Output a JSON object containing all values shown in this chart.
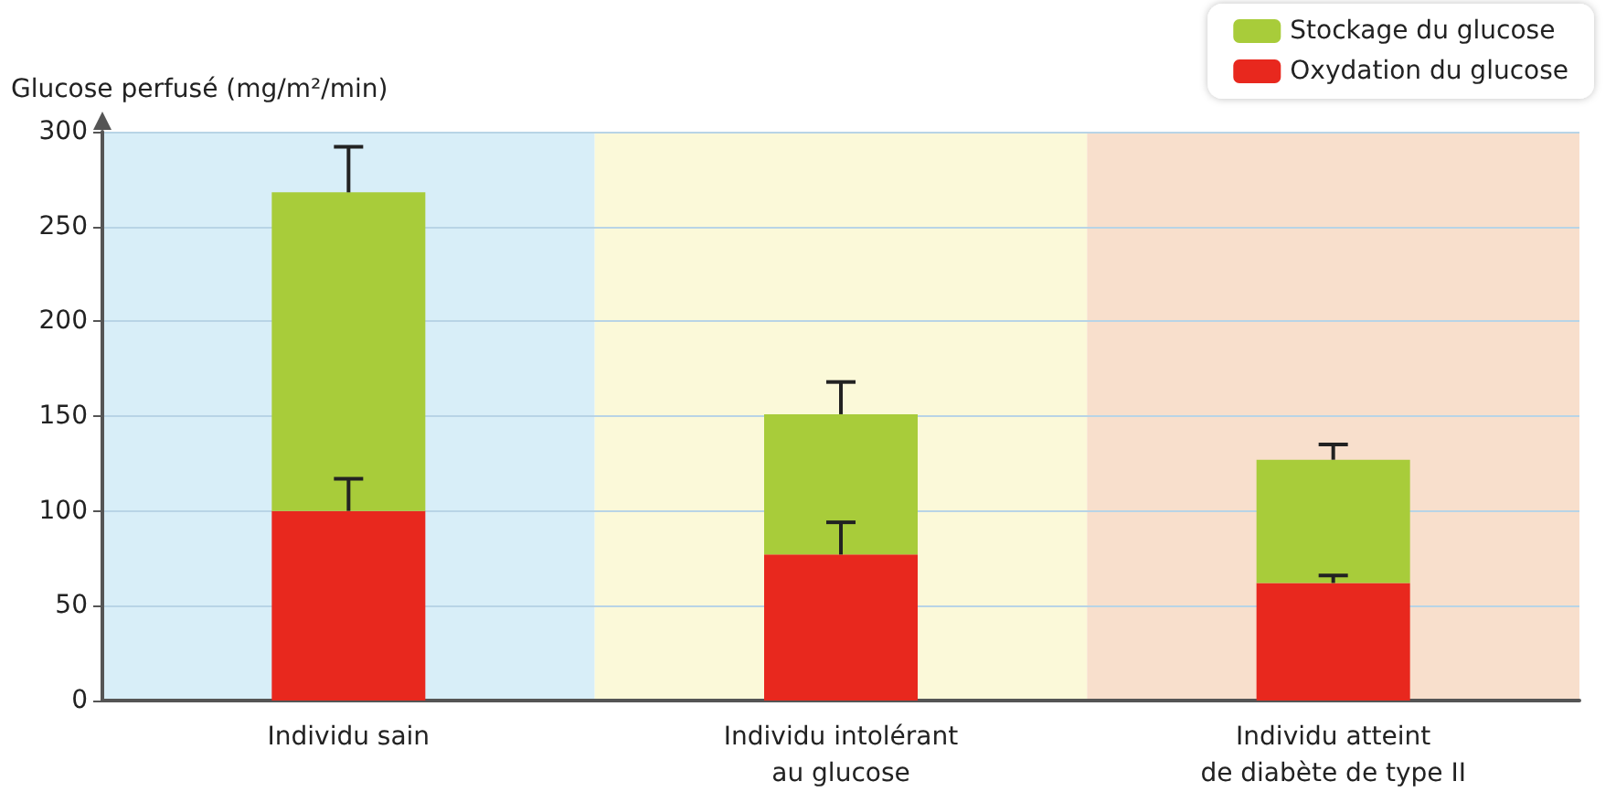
{
  "chart_data": {
    "type": "bar",
    "stacked": true,
    "ylabel": "Glucose perfusé (mg/m²/min)",
    "categories": [
      "Individu sain",
      "Individu intolérant\nau glucose",
      "Individu atteint\nde diabète de type II"
    ],
    "series": [
      {
        "name": "Oxydation du glucose",
        "color": "#e8281e",
        "values": [
          100,
          77,
          62
        ],
        "errors": [
          [
            100,
            117
          ],
          [
            77,
            94
          ],
          [
            62,
            66
          ]
        ]
      },
      {
        "name": "Stockage du glucose",
        "color": "#a8cc3a",
        "values": [
          168,
          74,
          65
        ],
        "errors": [
          [
            268,
            292
          ],
          [
            151,
            168
          ],
          [
            127,
            135
          ]
        ]
      }
    ],
    "bands": [
      {
        "axis": "x",
        "from": "Individu sain",
        "to": "Individu sain",
        "color": "#d8eef8"
      },
      {
        "axis": "x",
        "from": "Individu intolérant\nau glucose",
        "to": "Individu intolérant\nau glucose",
        "color": "#fbf9d9"
      },
      {
        "axis": "x",
        "from": "Individu atteint\nde diabète de type II",
        "to": "Individu atteint\nde diabète de type II",
        "color": "#f8dfcc"
      }
    ],
    "ylim": [
      0,
      300
    ],
    "yticks": [
      0,
      50,
      100,
      150,
      200,
      250,
      300
    ],
    "grid": "y",
    "legend": "top right"
  }
}
